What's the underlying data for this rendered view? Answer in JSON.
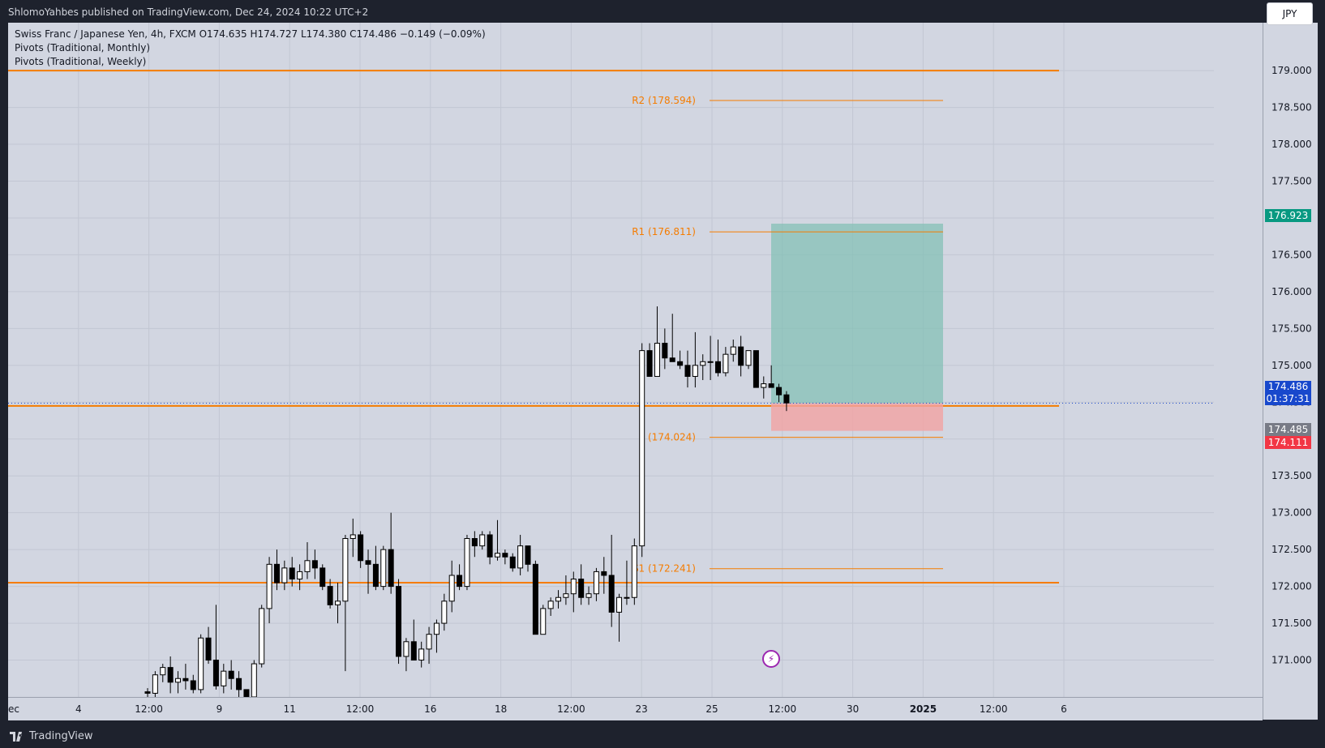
{
  "header": {
    "publisher": "ShlomoYahbes published on TradingView.com, Dec 24, 2024 10:22 UTC+2"
  },
  "footer": {
    "brand": "TradingView"
  },
  "legend": {
    "symbol_line": "Swiss Franc / Japanese Yen, 4h, FXCM  O174.635  H174.727  L174.380  C174.486  −0.149 (−0.09%)",
    "indicator1": "Pivots (Traditional, Monthly)",
    "indicator2": "Pivots (Traditional, Weekly)"
  },
  "currency_button": "JPY",
  "price_tags": {
    "target": "176.923",
    "last_price": "174.486",
    "countdown": "01:37:31",
    "bid": "174.485",
    "stop": "174.111"
  },
  "colors": {
    "background": "#d2d6e1",
    "pivot": "#f57c00",
    "up_candle": "#ffffff",
    "down_candle": "#000000",
    "profit_zone": "#7fbfb4",
    "loss_zone": "#f2a3a3",
    "target_tag": "#089981",
    "last_tag": "#1848cc",
    "bid_tag": "#787b86",
    "stop_tag": "#f23645"
  },
  "chart_data": {
    "type": "candlestick",
    "title": "Swiss Franc / Japanese Yen, 4h, FXCM",
    "ylim": [
      170.5,
      179.65
    ],
    "y_ticks": [
      "179.000",
      "178.500",
      "178.000",
      "177.500",
      "177.000",
      "176.500",
      "176.000",
      "175.500",
      "175.000",
      "174.500",
      "174.000",
      "173.500",
      "173.000",
      "172.500",
      "172.000",
      "171.500",
      "171.000"
    ],
    "x_ticks": [
      "ec",
      "4",
      "12:00",
      "9",
      "11",
      "12:00",
      "16",
      "18",
      "12:00",
      "23",
      "25",
      "12:00",
      "30",
      "2025",
      "12:00",
      "6"
    ],
    "monthly_pivot_lines": [
      179.0,
      174.45,
      172.05
    ],
    "weekly_pivots": [
      {
        "label": "R2 (178.594)",
        "value": 178.594
      },
      {
        "label": "R1 (176.811)",
        "value": 176.811
      },
      {
        "label": "P (174.024)",
        "value": 174.024
      },
      {
        "label": "S1 (172.241)",
        "value": 172.241
      }
    ],
    "position": {
      "entry": 174.486,
      "target": 176.923,
      "stop": 174.111
    },
    "candles": [
      [
        170.57,
        170.62,
        170.5,
        170.55
      ],
      [
        170.55,
        170.85,
        170.45,
        170.8
      ],
      [
        170.8,
        170.95,
        170.7,
        170.9
      ],
      [
        170.9,
        171.05,
        170.55,
        170.7
      ],
      [
        170.7,
        170.85,
        170.55,
        170.75
      ],
      [
        170.75,
        170.95,
        170.6,
        170.72
      ],
      [
        170.72,
        170.8,
        170.55,
        170.6
      ],
      [
        170.6,
        171.35,
        170.55,
        171.3
      ],
      [
        171.3,
        171.45,
        170.95,
        171.0
      ],
      [
        171.0,
        171.75,
        170.6,
        170.65
      ],
      [
        170.65,
        170.95,
        170.55,
        170.85
      ],
      [
        170.85,
        171.0,
        170.6,
        170.75
      ],
      [
        170.75,
        170.85,
        170.5,
        170.6
      ],
      [
        170.6,
        170.55,
        170.45,
        170.5
      ],
      [
        170.5,
        171.0,
        170.45,
        170.95
      ],
      [
        170.95,
        171.75,
        170.9,
        171.7
      ],
      [
        171.7,
        172.4,
        171.5,
        172.3
      ],
      [
        172.3,
        172.5,
        171.95,
        172.05
      ],
      [
        172.05,
        172.35,
        171.95,
        172.25
      ],
      [
        172.25,
        172.4,
        172.0,
        172.1
      ],
      [
        172.1,
        172.3,
        171.95,
        172.2
      ],
      [
        172.2,
        172.6,
        172.1,
        172.35
      ],
      [
        172.35,
        172.5,
        172.1,
        172.25
      ],
      [
        172.25,
        172.3,
        171.95,
        172.0
      ],
      [
        172.0,
        172.1,
        171.7,
        171.75
      ],
      [
        171.75,
        172.05,
        171.5,
        171.8
      ],
      [
        171.8,
        172.7,
        170.85,
        172.65
      ],
      [
        172.65,
        172.92,
        172.4,
        172.7
      ],
      [
        172.7,
        172.75,
        172.25,
        172.35
      ],
      [
        172.35,
        172.5,
        171.9,
        172.3
      ],
      [
        172.3,
        172.55,
        171.95,
        172.0
      ],
      [
        172.0,
        172.55,
        171.95,
        172.5
      ],
      [
        172.5,
        173.0,
        171.9,
        172.0
      ],
      [
        172.0,
        172.1,
        170.95,
        171.05
      ],
      [
        171.05,
        171.3,
        170.85,
        171.25
      ],
      [
        171.25,
        171.55,
        171.0,
        171.0
      ],
      [
        171.0,
        171.25,
        170.9,
        171.15
      ],
      [
        171.15,
        171.45,
        170.95,
        171.35
      ],
      [
        171.35,
        171.55,
        171.1,
        171.5
      ],
      [
        171.5,
        171.9,
        171.4,
        171.8
      ],
      [
        171.8,
        172.35,
        171.65,
        172.15
      ],
      [
        172.15,
        172.3,
        171.95,
        172.0
      ],
      [
        172.0,
        172.7,
        171.95,
        172.65
      ],
      [
        172.65,
        172.75,
        172.4,
        172.55
      ],
      [
        172.55,
        172.75,
        172.5,
        172.7
      ],
      [
        172.7,
        172.75,
        172.3,
        172.4
      ],
      [
        172.4,
        172.9,
        172.35,
        172.45
      ],
      [
        172.45,
        172.5,
        172.3,
        172.4
      ],
      [
        172.4,
        172.45,
        172.2,
        172.25
      ],
      [
        172.25,
        172.7,
        172.15,
        172.55
      ],
      [
        172.55,
        172.55,
        172.2,
        172.3
      ],
      [
        172.3,
        172.35,
        171.35,
        171.35
      ],
      [
        171.35,
        171.75,
        171.35,
        171.7
      ],
      [
        171.7,
        171.85,
        171.6,
        171.8
      ],
      [
        171.8,
        171.95,
        171.7,
        171.85
      ],
      [
        171.85,
        172.15,
        171.75,
        171.9
      ],
      [
        171.9,
        172.2,
        171.65,
        172.1
      ],
      [
        172.1,
        172.3,
        171.75,
        171.85
      ],
      [
        171.85,
        172.0,
        171.75,
        171.9
      ],
      [
        171.9,
        172.25,
        171.8,
        172.2
      ],
      [
        172.2,
        172.4,
        171.9,
        172.15
      ],
      [
        172.15,
        172.7,
        171.45,
        171.65
      ],
      [
        171.65,
        171.9,
        171.25,
        171.85
      ],
      [
        171.85,
        172.35,
        171.75,
        171.85
      ],
      [
        171.85,
        172.65,
        171.75,
        172.55
      ],
      [
        172.55,
        175.3,
        172.4,
        175.2
      ],
      [
        175.2,
        175.3,
        174.85,
        174.85
      ],
      [
        174.85,
        175.8,
        174.85,
        175.3
      ],
      [
        175.3,
        175.5,
        174.95,
        175.1
      ],
      [
        175.1,
        175.7,
        175.05,
        175.05
      ],
      [
        175.05,
        175.2,
        174.95,
        175.0
      ],
      [
        175.0,
        175.2,
        174.7,
        174.85
      ],
      [
        174.85,
        175.45,
        174.7,
        175.0
      ],
      [
        175.0,
        175.15,
        174.8,
        175.05
      ],
      [
        175.05,
        175.4,
        174.8,
        175.05
      ],
      [
        175.05,
        175.35,
        174.85,
        174.9
      ],
      [
        174.9,
        175.25,
        174.85,
        175.15
      ],
      [
        175.15,
        175.35,
        175.05,
        175.25
      ],
      [
        175.25,
        175.4,
        174.85,
        175.0
      ],
      [
        175.0,
        175.2,
        174.95,
        175.2
      ],
      [
        175.2,
        175.2,
        174.7,
        174.7
      ],
      [
        174.7,
        174.85,
        174.55,
        174.75
      ],
      [
        174.75,
        175.0,
        174.7,
        174.7
      ],
      [
        174.7,
        174.75,
        174.5,
        174.6
      ],
      [
        174.6,
        174.65,
        174.38,
        174.49
      ]
    ]
  }
}
